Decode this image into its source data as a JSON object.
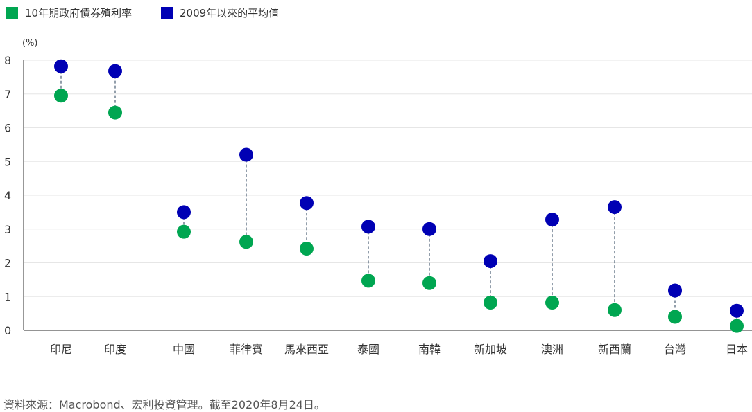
{
  "chart_data": {
    "type": "scatter",
    "unit_label": "(%)",
    "ylim": [
      0,
      8
    ],
    "yticks": [
      0,
      1,
      2,
      3,
      4,
      5,
      6,
      7,
      8
    ],
    "grid": true,
    "legend_position": "top-left",
    "categories": [
      "印尼",
      "印度",
      "中國",
      "菲律賓",
      "馬來西亞",
      "泰國",
      "南韓",
      "新加坡",
      "澳洲",
      "新西蘭",
      "台灣",
      "日本"
    ],
    "series": [
      {
        "name": "10年期政府債券殖利率",
        "color": "#00a651",
        "values": [
          6.95,
          6.45,
          2.92,
          2.62,
          2.42,
          1.47,
          1.4,
          0.82,
          0.82,
          0.6,
          0.4,
          0.13
        ]
      },
      {
        "name": "2009年以來的平均值",
        "color": "#0000b4",
        "values": [
          7.82,
          7.68,
          3.5,
          5.2,
          3.77,
          3.07,
          3.0,
          2.05,
          3.28,
          3.65,
          1.18,
          0.58
        ]
      }
    ],
    "connector_color": "#4a5d73",
    "source": "資料來源：Macrobond、宏利投資管理。截至2020年8月24日。"
  }
}
